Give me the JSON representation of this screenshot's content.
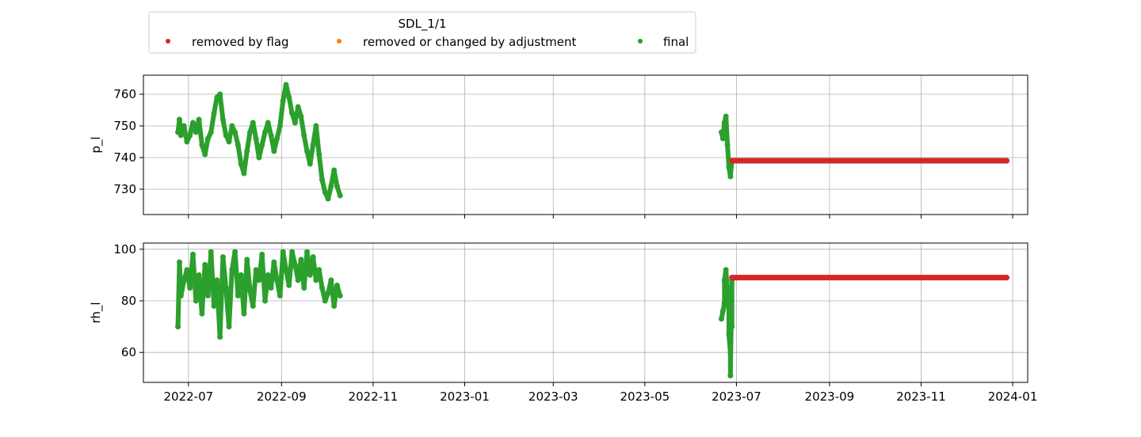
{
  "legend": {
    "title": "SDL_1/1",
    "items": [
      {
        "label": "removed by flag",
        "color": "#d62728"
      },
      {
        "label": "removed or changed by adjustment",
        "color": "#ff7f0e"
      },
      {
        "label": "final",
        "color": "#2ca02c"
      }
    ]
  },
  "chart_data": [
    {
      "type": "scatter",
      "ylabel": "p_l",
      "ylim": [
        722,
        766
      ],
      "yticks": [
        730,
        740,
        750,
        760
      ],
      "xlim": [
        "2022-06-01",
        "2024-01-11"
      ],
      "xticks": [
        "2022-07",
        "2022-09",
        "2022-11",
        "2023-01",
        "2023-03",
        "2023-05",
        "2023-07",
        "2023-09",
        "2023-11",
        "2024-01"
      ],
      "show_xtick_labels": false,
      "grid": true,
      "series": [
        {
          "name": "final",
          "color": "#2ca02c",
          "points": [
            [
              "2022-06-24",
              748
            ],
            [
              "2022-06-25",
              752
            ],
            [
              "2022-06-26",
              747
            ],
            [
              "2022-06-28",
              750
            ],
            [
              "2022-06-30",
              745
            ],
            [
              "2022-07-02",
              747
            ],
            [
              "2022-07-04",
              751
            ],
            [
              "2022-07-06",
              748
            ],
            [
              "2022-07-08",
              752
            ],
            [
              "2022-07-10",
              744
            ],
            [
              "2022-07-12",
              741
            ],
            [
              "2022-07-14",
              746
            ],
            [
              "2022-07-16",
              748
            ],
            [
              "2022-07-18",
              754
            ],
            [
              "2022-07-20",
              759
            ],
            [
              "2022-07-22",
              760
            ],
            [
              "2022-07-24",
              752
            ],
            [
              "2022-07-26",
              747
            ],
            [
              "2022-07-28",
              745
            ],
            [
              "2022-07-30",
              750
            ],
            [
              "2022-08-01",
              748
            ],
            [
              "2022-08-03",
              744
            ],
            [
              "2022-08-05",
              738
            ],
            [
              "2022-08-07",
              735
            ],
            [
              "2022-08-09",
              742
            ],
            [
              "2022-08-11",
              748
            ],
            [
              "2022-08-13",
              751
            ],
            [
              "2022-08-15",
              746
            ],
            [
              "2022-08-17",
              740
            ],
            [
              "2022-08-19",
              744
            ],
            [
              "2022-08-21",
              748
            ],
            [
              "2022-08-23",
              751
            ],
            [
              "2022-08-25",
              747
            ],
            [
              "2022-08-27",
              742
            ],
            [
              "2022-08-29",
              746
            ],
            [
              "2022-08-31",
              750
            ],
            [
              "2022-09-02",
              758
            ],
            [
              "2022-09-04",
              763
            ],
            [
              "2022-09-06",
              759
            ],
            [
              "2022-09-08",
              754
            ],
            [
              "2022-09-10",
              751
            ],
            [
              "2022-09-12",
              756
            ],
            [
              "2022-09-14",
              753
            ],
            [
              "2022-09-16",
              747
            ],
            [
              "2022-09-18",
              742
            ],
            [
              "2022-09-20",
              738
            ],
            [
              "2022-09-22",
              744
            ],
            [
              "2022-09-24",
              750
            ],
            [
              "2022-09-26",
              741
            ],
            [
              "2022-09-28",
              733
            ],
            [
              "2022-09-30",
              729
            ],
            [
              "2022-10-02",
              727
            ],
            [
              "2022-10-04",
              731
            ],
            [
              "2022-10-06",
              736
            ],
            [
              "2022-10-08",
              731
            ],
            [
              "2022-10-10",
              728
            ],
            [
              "2023-06-21",
              748
            ],
            [
              "2023-06-22",
              746
            ],
            [
              "2023-06-23",
              751
            ],
            [
              "2023-06-24",
              753
            ],
            [
              "2023-06-25",
              744
            ],
            [
              "2023-06-26",
              737
            ],
            [
              "2023-06-27",
              734
            ],
            [
              "2023-06-28",
              739
            ]
          ]
        },
        {
          "name": "removed by flag",
          "color": "#d62728",
          "points": [
            [
              "2023-06-28",
              739
            ],
            [
              "2023-12-28",
              739
            ]
          ]
        }
      ]
    },
    {
      "type": "scatter",
      "ylabel": "rh_l",
      "ylim": [
        48.4,
        102.4
      ],
      "yticks": [
        60,
        80,
        100
      ],
      "xlim": [
        "2022-06-01",
        "2024-01-11"
      ],
      "xticks": [
        "2022-07",
        "2022-09",
        "2022-11",
        "2023-01",
        "2023-03",
        "2023-05",
        "2023-07",
        "2023-09",
        "2023-11",
        "2024-01"
      ],
      "xticklabels": [
        "2022-07",
        "2022-09",
        "2022-11",
        "2023-01",
        "2023-03",
        "2023-05",
        "2023-07",
        "2023-09",
        "2023-11",
        "2024-01"
      ],
      "grid": true,
      "series": [
        {
          "name": "final",
          "color": "#2ca02c",
          "points": [
            [
              "2022-06-24",
              70
            ],
            [
              "2022-06-25",
              95
            ],
            [
              "2022-06-26",
              82
            ],
            [
              "2022-06-28",
              88
            ],
            [
              "2022-06-30",
              92
            ],
            [
              "2022-07-02",
              85
            ],
            [
              "2022-07-04",
              98
            ],
            [
              "2022-07-06",
              80
            ],
            [
              "2022-07-08",
              90
            ],
            [
              "2022-07-10",
              75
            ],
            [
              "2022-07-12",
              94
            ],
            [
              "2022-07-14",
              82
            ],
            [
              "2022-07-16",
              99
            ],
            [
              "2022-07-18",
              78
            ],
            [
              "2022-07-20",
              88
            ],
            [
              "2022-07-22",
              66
            ],
            [
              "2022-07-24",
              97
            ],
            [
              "2022-07-26",
              85
            ],
            [
              "2022-07-28",
              70
            ],
            [
              "2022-07-30",
              92
            ],
            [
              "2022-08-01",
              99
            ],
            [
              "2022-08-03",
              82
            ],
            [
              "2022-08-05",
              90
            ],
            [
              "2022-08-07",
              75
            ],
            [
              "2022-08-09",
              96
            ],
            [
              "2022-08-11",
              84
            ],
            [
              "2022-08-13",
              78
            ],
            [
              "2022-08-15",
              92
            ],
            [
              "2022-08-17",
              88
            ],
            [
              "2022-08-19",
              98
            ],
            [
              "2022-08-21",
              80
            ],
            [
              "2022-08-23",
              90
            ],
            [
              "2022-08-25",
              85
            ],
            [
              "2022-08-27",
              95
            ],
            [
              "2022-08-29",
              88
            ],
            [
              "2022-08-31",
              82
            ],
            [
              "2022-09-02",
              99
            ],
            [
              "2022-09-04",
              92
            ],
            [
              "2022-09-06",
              86
            ],
            [
              "2022-09-08",
              99
            ],
            [
              "2022-09-10",
              94
            ],
            [
              "2022-09-12",
              88
            ],
            [
              "2022-09-14",
              96
            ],
            [
              "2022-09-16",
              85
            ],
            [
              "2022-09-18",
              99
            ],
            [
              "2022-09-20",
              90
            ],
            [
              "2022-09-22",
              97
            ],
            [
              "2022-09-24",
              88
            ],
            [
              "2022-09-26",
              92
            ],
            [
              "2022-09-28",
              85
            ],
            [
              "2022-09-30",
              80
            ],
            [
              "2022-10-02",
              83
            ],
            [
              "2022-10-04",
              88
            ],
            [
              "2022-10-06",
              78
            ],
            [
              "2022-10-08",
              86
            ],
            [
              "2022-10-10",
              82
            ],
            [
              "2023-06-21",
              73
            ],
            [
              "2023-06-22",
              76
            ],
            [
              "2023-06-23",
              79
            ],
            [
              "2023-06-23",
              88
            ],
            [
              "2023-06-24",
              92
            ],
            [
              "2023-06-25",
              83
            ],
            [
              "2023-06-26",
              77
            ],
            [
              "2023-06-26",
              67
            ],
            [
              "2023-06-27",
              60
            ],
            [
              "2023-06-27",
              51
            ],
            [
              "2023-06-28",
              88
            ],
            [
              "2023-06-28",
              70
            ]
          ]
        },
        {
          "name": "removed by flag",
          "color": "#d62728",
          "points": [
            [
              "2023-06-28",
              89
            ],
            [
              "2023-12-28",
              89
            ]
          ]
        }
      ]
    }
  ]
}
